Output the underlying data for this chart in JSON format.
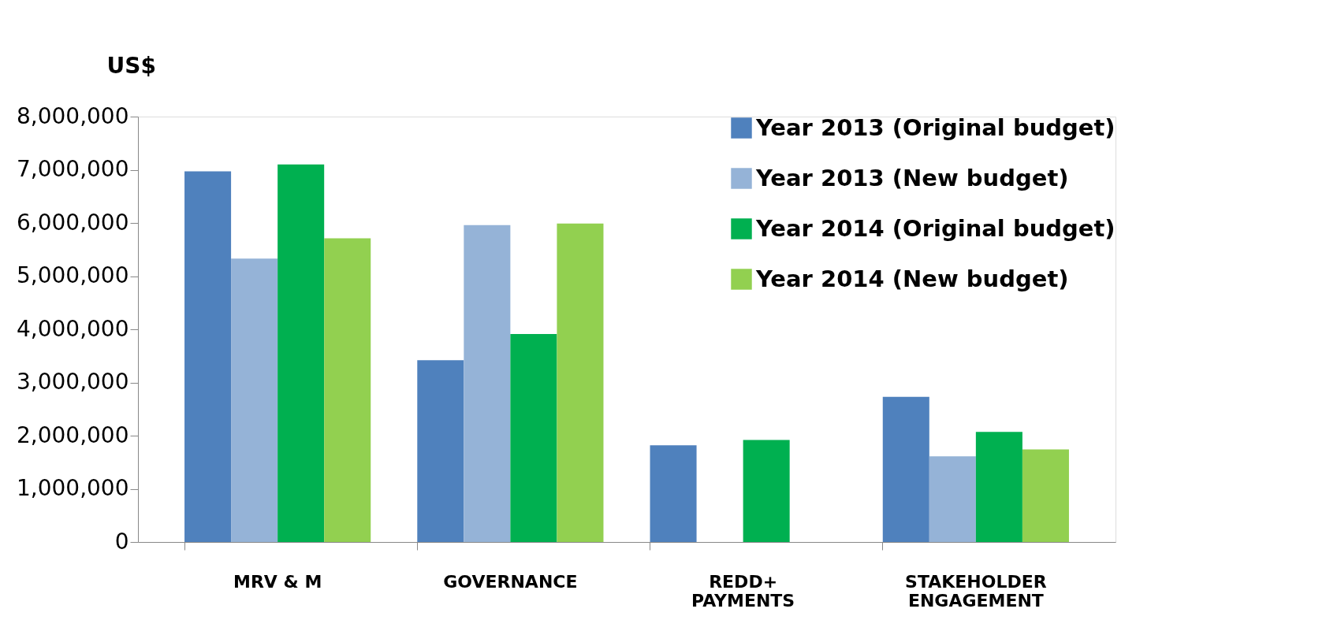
{
  "chart_data": {
    "type": "bar",
    "ylabel": "US$",
    "categories": [
      "MRV & M",
      "GOVERNANCE",
      "REDD+\nPAYMENTS",
      "STAKEHOLDER\nENGAGEMENT"
    ],
    "series": [
      {
        "name": "Year 2013 (Original budget)",
        "color": "#4f81bd",
        "values": [
          6970000,
          3420000,
          1820000,
          2730000
        ]
      },
      {
        "name": "Year 2013 (New budget)",
        "color": "#95b3d7",
        "values": [
          5330000,
          5960000,
          null,
          1610000
        ]
      },
      {
        "name": "Year 2014 (Original budget)",
        "color": "#00b050",
        "values": [
          7100000,
          3910000,
          1920000,
          2070000
        ]
      },
      {
        "name": "Year 2014 (New budget)",
        "color": "#92d050",
        "values": [
          5710000,
          5990000,
          null,
          1740000
        ]
      }
    ],
    "ylim": [
      0,
      8000000
    ],
    "yticks": [
      0,
      {
        "value": 1000000,
        "label": "1,000,000"
      },
      {
        "value": 2000000,
        "label": "2,000,000"
      },
      {
        "value": 3000000,
        "label": "3,000,000"
      },
      {
        "value": 4000000,
        "label": "4,000,000"
      },
      {
        "value": 5000000,
        "label": "5,000,000"
      },
      {
        "value": 6000000,
        "label": "6,000,000"
      },
      {
        "value": 7000000,
        "label": "7,000,000"
      },
      {
        "value": 8000000,
        "label": "8,000,000"
      }
    ],
    "grid": false,
    "legend": "top right"
  }
}
